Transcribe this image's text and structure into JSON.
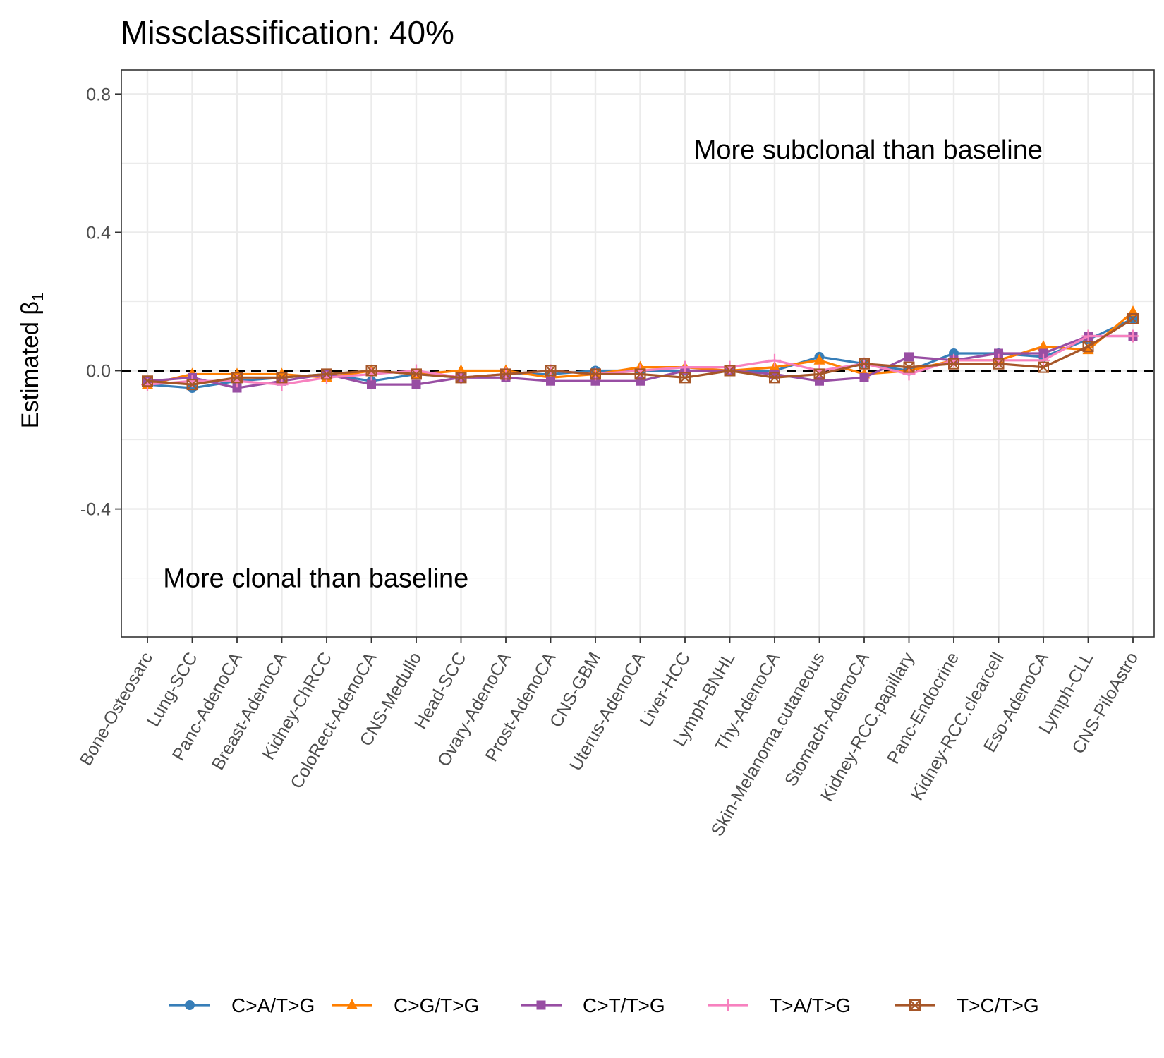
{
  "chart_data": {
    "type": "line",
    "title": "Missclassification: 40%",
    "xlabel": "",
    "ylabel": "Estimated β",
    "ylabel_subscript": "1",
    "ylim": [
      -0.77,
      0.87
    ],
    "yticks": [
      -0.4,
      0.0,
      0.4,
      0.8
    ],
    "ytick_labels": [
      "-0.4",
      "0.0",
      "0.4",
      "0.8"
    ],
    "grid": true,
    "reference_line": 0,
    "legend_position": "bottom",
    "annotations": [
      {
        "text": "More subclonal than baseline",
        "x_index": 12.2,
        "y": 0.64,
        "anchor": "start"
      },
      {
        "text": "More clonal than baseline",
        "x_index": 0.35,
        "y": -0.6,
        "anchor": "start"
      }
    ],
    "categories": [
      "Bone-Osteosarc",
      "Lung-SCC",
      "Panc-AdenoCA",
      "Breast-AdenoCA",
      "Kidney-ChRCC",
      "ColoRect-AdenoCA",
      "CNS-Medullo",
      "Head-SCC",
      "Ovary-AdenoCA",
      "Prost-AdenoCA",
      "CNS-GBM",
      "Uterus-AdenoCA",
      "Liver-HCC",
      "Lymph-BNHL",
      "Thy-AdenoCA",
      "Skin-Melanoma.cutaneous",
      "Stomach-AdenoCA",
      "Kidney-RCC.papillary",
      "Panc-Endocrine",
      "Kidney-RCC.clearcell",
      "Eso-AdenoCA",
      "Lymph-CLL",
      "CNS-PiloAstro"
    ],
    "series": [
      {
        "name": "C>A/T>G",
        "color": "#377EB8",
        "marker": "circle",
        "values": [
          -0.04,
          -0.05,
          -0.03,
          -0.02,
          -0.01,
          -0.03,
          -0.01,
          -0.02,
          -0.01,
          -0.01,
          0.0,
          0.0,
          0.0,
          0.0,
          0.0,
          0.04,
          0.02,
          0.0,
          0.05,
          0.05,
          0.04,
          0.09,
          0.15
        ]
      },
      {
        "name": "C>G/T>G",
        "color": "#FF7F00",
        "marker": "triangle",
        "values": [
          -0.04,
          -0.01,
          -0.01,
          -0.01,
          -0.02,
          0.0,
          -0.01,
          0.0,
          0.0,
          -0.02,
          -0.01,
          0.01,
          0.01,
          0.0,
          0.01,
          0.03,
          -0.01,
          0.0,
          0.03,
          0.03,
          0.07,
          0.06,
          0.17
        ]
      },
      {
        "name": "C>T/T>G",
        "color": "#984EA3",
        "marker": "square",
        "values": [
          -0.03,
          -0.02,
          -0.05,
          -0.03,
          -0.01,
          -0.04,
          -0.04,
          -0.02,
          -0.02,
          -0.03,
          -0.03,
          -0.03,
          0.0,
          0.0,
          -0.01,
          -0.03,
          -0.02,
          0.04,
          0.03,
          0.05,
          0.05,
          0.1,
          0.1
        ]
      },
      {
        "name": "T>A/T>G",
        "color": "#F781BF",
        "marker": "plus",
        "values": [
          -0.04,
          -0.03,
          -0.03,
          -0.04,
          -0.02,
          -0.01,
          0.0,
          -0.02,
          -0.01,
          0.0,
          -0.01,
          0.0,
          0.01,
          0.01,
          0.03,
          0.0,
          0.02,
          -0.01,
          0.03,
          0.03,
          0.03,
          0.1,
          0.1
        ]
      },
      {
        "name": "T>C/T>G",
        "color": "#A65628",
        "marker": "boxx",
        "values": [
          -0.03,
          -0.04,
          -0.02,
          -0.02,
          -0.01,
          0.0,
          -0.01,
          -0.02,
          -0.01,
          0.0,
          -0.01,
          -0.01,
          -0.02,
          0.0,
          -0.02,
          -0.01,
          0.02,
          0.01,
          0.02,
          0.02,
          0.01,
          0.07,
          0.15
        ]
      }
    ]
  }
}
